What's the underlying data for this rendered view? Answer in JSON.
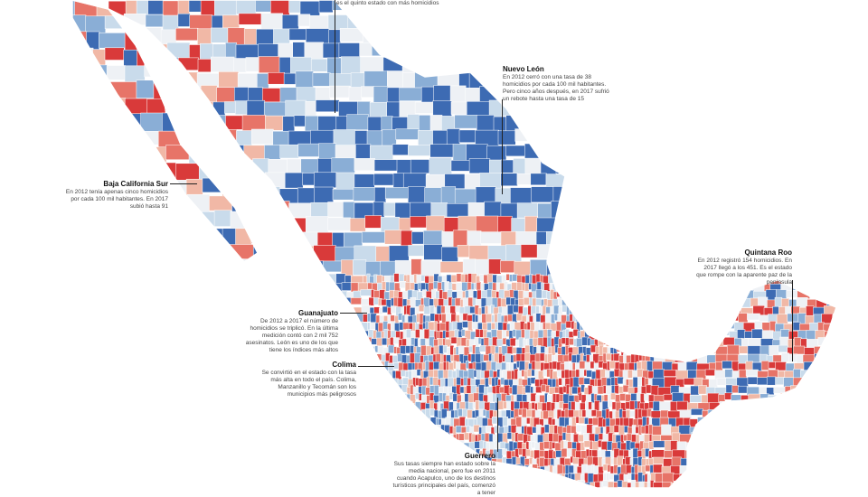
{
  "colors": {
    "dark_blue": "#3d6bb3",
    "mid_blue": "#8aaed6",
    "light_blue": "#c9dbeb",
    "very_light": "#eef1f5",
    "light_red": "#f1b8a6",
    "mid_red": "#e77468",
    "dark_red": "#d93a3a",
    "leader_line": "#222222"
  },
  "callouts": {
    "top_fragment": {
      "text": "es el quinto estado con más homicidios"
    },
    "nuevo_leon": {
      "title": "Nuevo León",
      "text": "En 2012 cerró con una tasa de 38 homicidios por cada 100 mil habitantes. Pero cinco años después, en 2017 sufrió un rebote hasta una tasa de 15"
    },
    "baja_california_sur": {
      "title": "Baja California Sur",
      "text": "En 2012 tenía apenas cinco homicidios por cada 100 mil habitantes. En 2017 subió hasta 91"
    },
    "quintana_roo": {
      "title": "Quintana Roo",
      "text": "En 2012 registró 154 homicidios. En 2017 llegó a los 451. Es el estado que rompe con la aparente paz de la península"
    },
    "guanajuato": {
      "title": "Guanajuato",
      "text": "De 2012 a 2017 el número de homicidios se triplicó. En la última medición contó con 2 mil 752 asesinatos. León es uno de los que tiene los índices más altos"
    },
    "colima": {
      "title": "Colima",
      "text": "Se convirtió en el estado con la tasa más alta en todo el país. Colima, Manzanillo y Tecomán son los municipios más peligrosos"
    },
    "guerrero": {
      "title": "Guerrero",
      "text": "Sus tasas siempre han estado sobre la media nacional, pero fue en 2011 cuando Acapulco, uno de los destinos turísticos principales del país, comenzó a tener"
    }
  }
}
